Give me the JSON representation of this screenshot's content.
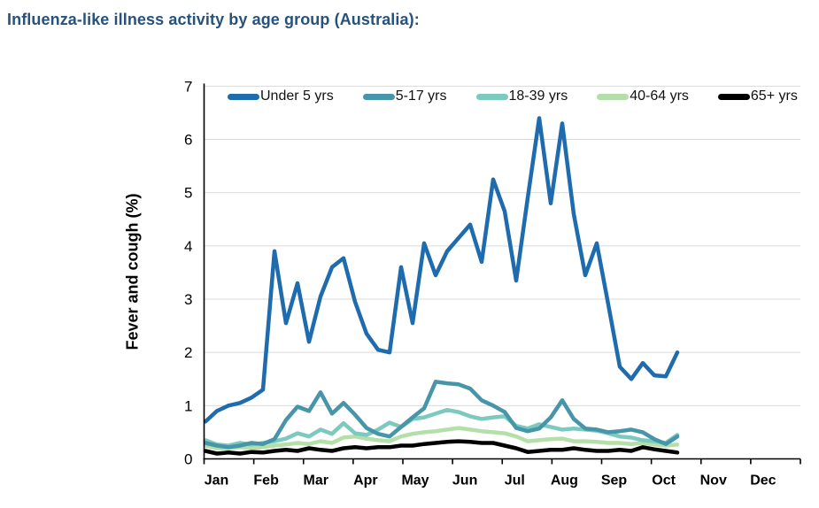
{
  "page": {
    "title": "Influenza-like illness activity by age group (Australia):"
  },
  "chart": {
    "y_axis_title": "Fever and cough (%)",
    "y_tick_labels": [
      "0",
      "1",
      "2",
      "3",
      "4",
      "5",
      "6",
      "7"
    ],
    "x_tick_labels": [
      "Jan",
      "Feb",
      "Mar",
      "Apr",
      "May",
      "Jun",
      "Jul",
      "Aug",
      "Sep",
      "Oct",
      "Nov",
      "Dec"
    ],
    "grid_color": "#D9D9D9",
    "axis_color": "#000000"
  },
  "chart_data": {
    "type": "line",
    "title": "Influenza-like illness activity by age group (Australia):",
    "xlabel": "",
    "ylabel": "Fever and cough (%)",
    "ylim": [
      0,
      7
    ],
    "y_ticks": [
      0,
      1,
      2,
      3,
      4,
      5,
      6,
      7
    ],
    "x_tick_labels": [
      "Jan",
      "Feb",
      "Mar",
      "Apr",
      "May",
      "Jun",
      "Jul",
      "Aug",
      "Sep",
      "Oct",
      "Nov",
      "Dec"
    ],
    "x_note_weekly_points_jan_to_mid_oct": 42,
    "grid": "horizontal",
    "legend_position": "top-inside",
    "series": [
      {
        "name": "Under 5 yrs",
        "color": "#1E6BAE",
        "values": [
          0.7,
          0.9,
          1.0,
          1.05,
          1.15,
          1.3,
          3.9,
          2.55,
          3.3,
          2.2,
          3.05,
          3.6,
          3.77,
          2.95,
          2.35,
          2.05,
          2.0,
          3.6,
          2.55,
          4.05,
          3.45,
          3.9,
          4.15,
          4.4,
          3.7,
          5.25,
          4.65,
          3.35,
          4.9,
          6.4,
          4.8,
          6.3,
          4.6,
          3.45,
          4.05,
          2.9,
          1.73,
          1.5,
          1.8,
          1.57,
          1.55,
          2.0
        ]
      },
      {
        "name": "5-17 yrs",
        "color": "#4795A8",
        "values": [
          0.3,
          0.25,
          0.22,
          0.25,
          0.3,
          0.28,
          0.37,
          0.73,
          0.98,
          0.9,
          1.25,
          0.85,
          1.05,
          0.83,
          0.58,
          0.47,
          0.42,
          0.6,
          0.78,
          0.95,
          1.45,
          1.42,
          1.4,
          1.32,
          1.1,
          1.0,
          0.88,
          0.58,
          0.52,
          0.57,
          0.78,
          1.1,
          0.75,
          0.57,
          0.55,
          0.5,
          0.52,
          0.55,
          0.5,
          0.37,
          0.28,
          0.42
        ]
      },
      {
        "name": "18-39 yrs",
        "color": "#7CCABF",
        "values": [
          0.35,
          0.27,
          0.25,
          0.3,
          0.27,
          0.3,
          0.33,
          0.38,
          0.48,
          0.42,
          0.55,
          0.47,
          0.67,
          0.48,
          0.45,
          0.55,
          0.68,
          0.6,
          0.75,
          0.78,
          0.85,
          0.92,
          0.88,
          0.8,
          0.75,
          0.78,
          0.8,
          0.62,
          0.57,
          0.65,
          0.6,
          0.55,
          0.57,
          0.55,
          0.53,
          0.48,
          0.42,
          0.4,
          0.35,
          0.33,
          0.3,
          0.45
        ]
      },
      {
        "name": "40-64 yrs",
        "color": "#B4DFA9",
        "values": [
          0.25,
          0.2,
          0.2,
          0.22,
          0.2,
          0.22,
          0.25,
          0.27,
          0.3,
          0.28,
          0.33,
          0.3,
          0.4,
          0.42,
          0.38,
          0.35,
          0.33,
          0.42,
          0.47,
          0.5,
          0.52,
          0.55,
          0.58,
          0.55,
          0.52,
          0.5,
          0.48,
          0.42,
          0.33,
          0.35,
          0.37,
          0.38,
          0.33,
          0.33,
          0.32,
          0.3,
          0.3,
          0.28,
          0.3,
          0.27,
          0.25,
          0.27
        ]
      },
      {
        "name": "65+ yrs",
        "color": "#000000",
        "values": [
          0.15,
          0.1,
          0.12,
          0.1,
          0.13,
          0.12,
          0.15,
          0.17,
          0.15,
          0.2,
          0.17,
          0.15,
          0.2,
          0.22,
          0.2,
          0.22,
          0.22,
          0.25,
          0.25,
          0.28,
          0.3,
          0.32,
          0.33,
          0.32,
          0.3,
          0.3,
          0.25,
          0.2,
          0.13,
          0.15,
          0.17,
          0.17,
          0.2,
          0.17,
          0.15,
          0.15,
          0.17,
          0.15,
          0.22,
          0.18,
          0.15,
          0.12
        ]
      }
    ]
  }
}
